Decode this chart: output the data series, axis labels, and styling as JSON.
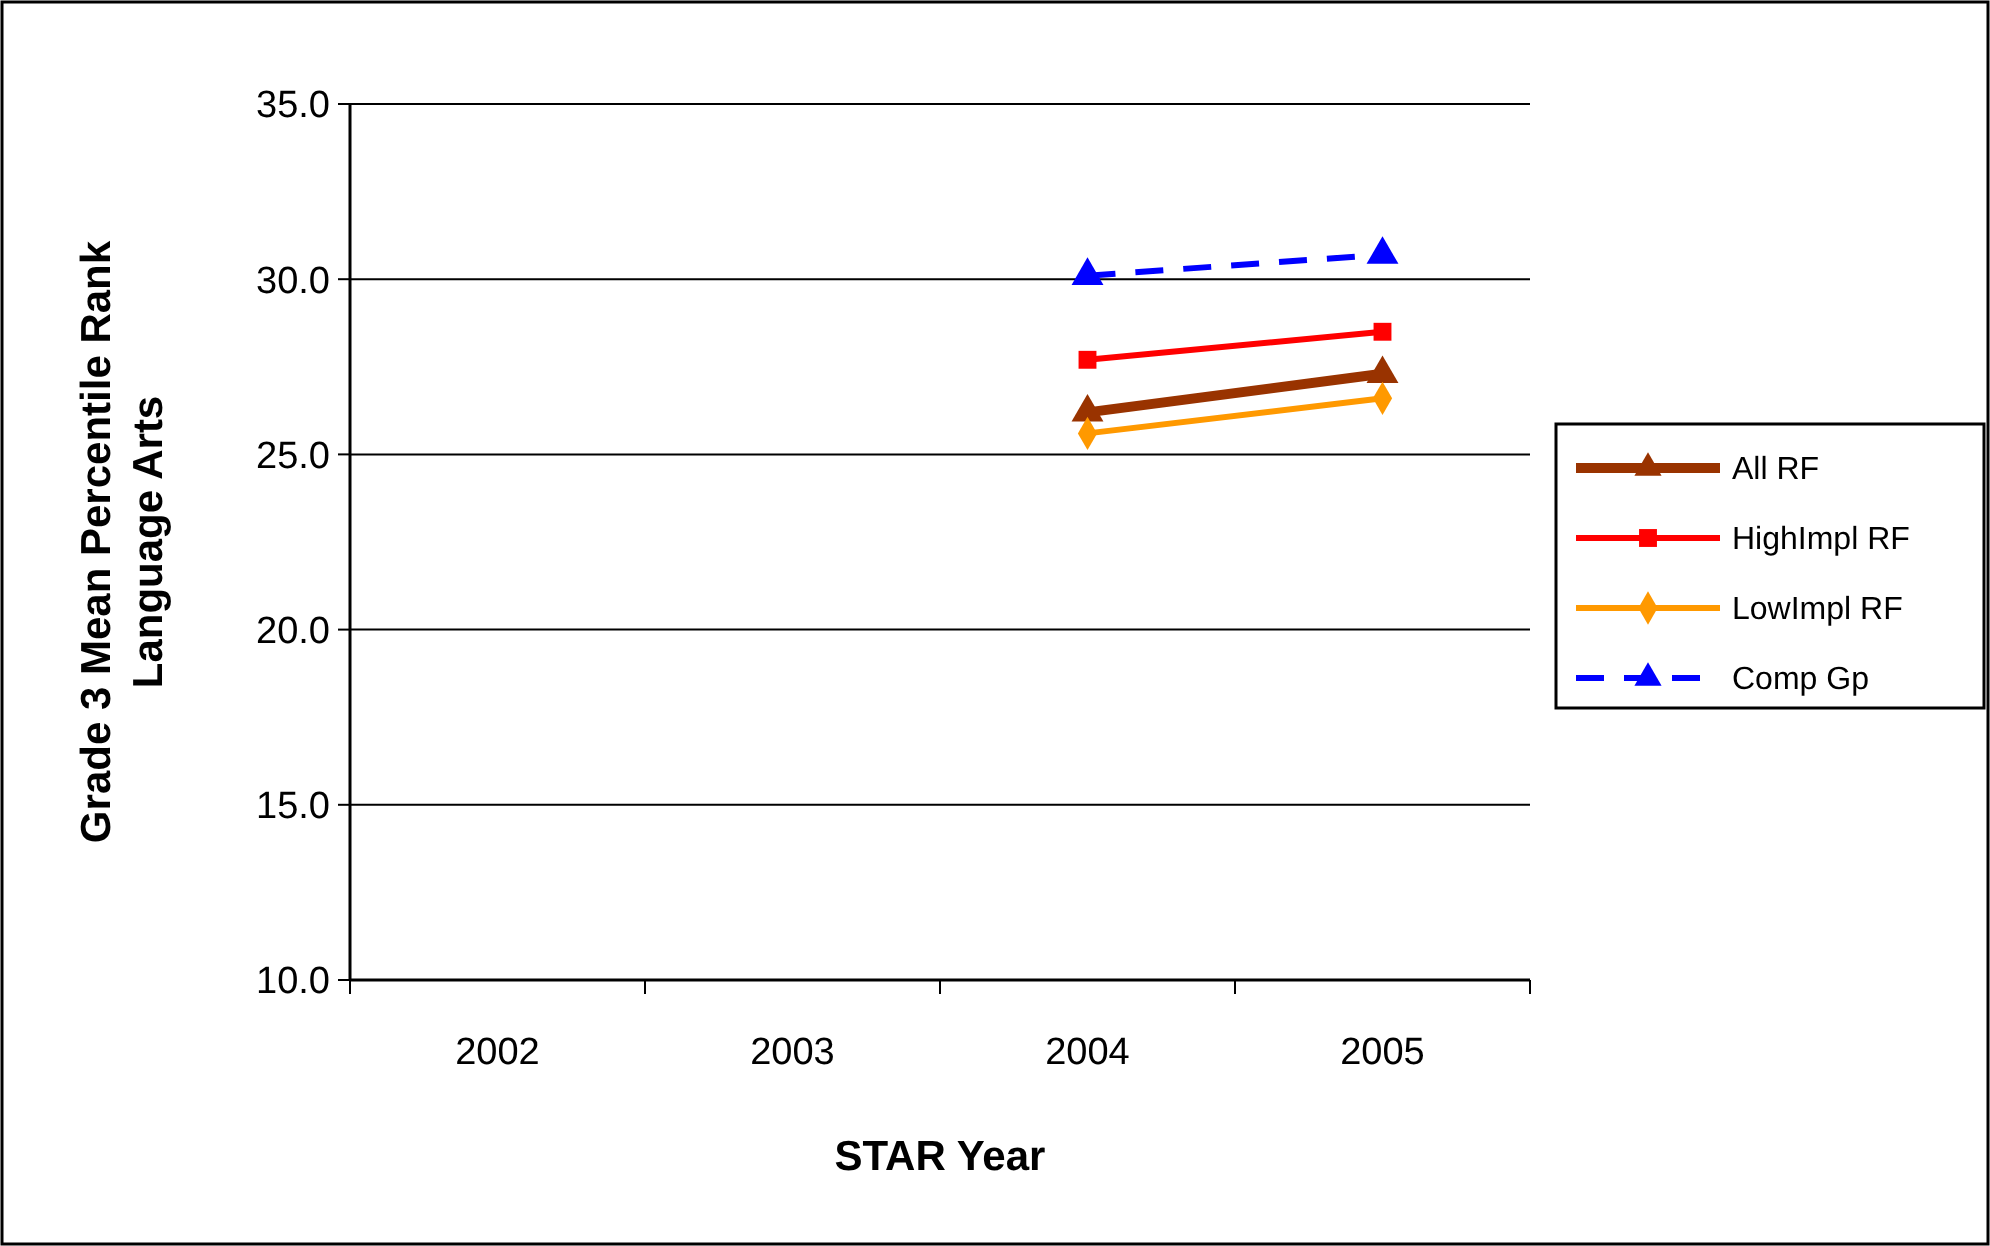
{
  "chart_data": {
    "type": "line",
    "xlabel": "STAR Year",
    "ylabel": "Grade 3 Mean Percentile Rank\nLanguage Arts",
    "categories": [
      "2002",
      "2003",
      "2004",
      "2005"
    ],
    "series": [
      {
        "name": "All RF",
        "color": "#993300",
        "values": [
          null,
          null,
          26.2,
          27.3
        ],
        "marker": "triangle",
        "line_style": "solid"
      },
      {
        "name": "HighImpl RF",
        "color": "#ff0000",
        "values": [
          null,
          null,
          27.7,
          28.5
        ],
        "marker": "square",
        "line_style": "solid"
      },
      {
        "name": "LowImpl RF",
        "color": "#ff9900",
        "values": [
          null,
          null,
          25.6,
          26.6
        ],
        "marker": "diamond",
        "line_style": "solid"
      },
      {
        "name": "Comp Gp",
        "color": "#0000ff",
        "values": [
          null,
          null,
          30.1,
          30.7
        ],
        "marker": "triangle",
        "line_style": "dashed"
      }
    ],
    "ylim": [
      10,
      35
    ],
    "yticks": [
      {
        "value": 10,
        "label": "10.0"
      },
      {
        "value": 15,
        "label": "15.0"
      },
      {
        "value": 20,
        "label": "20.0"
      },
      {
        "value": 25,
        "label": "25.0"
      },
      {
        "value": 30,
        "label": "30.0"
      },
      {
        "value": 35,
        "label": "35.0"
      }
    ],
    "grid": "y",
    "legend": "right"
  }
}
